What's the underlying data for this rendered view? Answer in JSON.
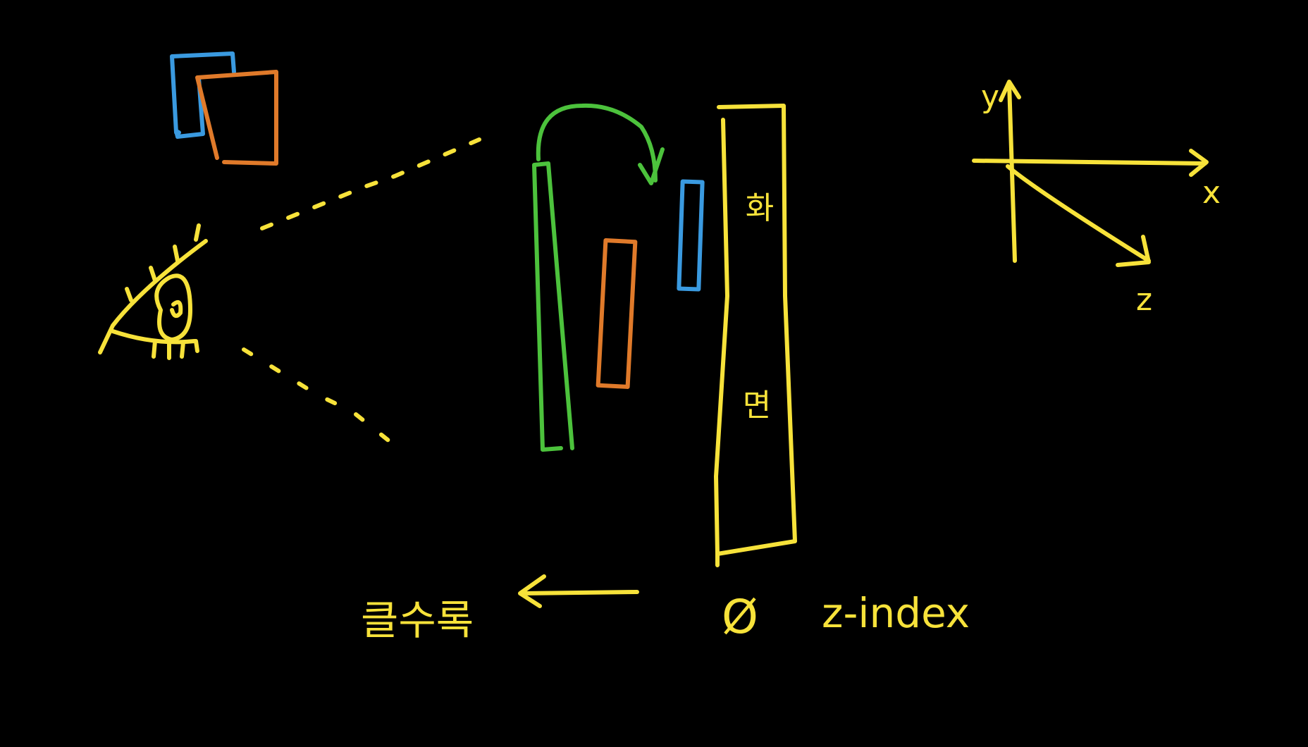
{
  "colors": {
    "background": "#000000",
    "yellow": "#f7e23a",
    "blue": "#3a9ae0",
    "orange": "#e07a2a",
    "green": "#4cc23c"
  },
  "screen_label": {
    "char_top": "화",
    "char_bottom": "면"
  },
  "axes": {
    "y_label": "y",
    "x_label": "x",
    "z_label": "z"
  },
  "bottom": {
    "bigger_label": "클수록",
    "zero_label": "Ø",
    "z_index_label": "z-index"
  },
  "icons": {
    "eye": "eye-icon",
    "layer_stack": "layered-squares-icon",
    "arrow": "arrow-left-icon",
    "curved_arrow": "curved-arrow-icon"
  }
}
